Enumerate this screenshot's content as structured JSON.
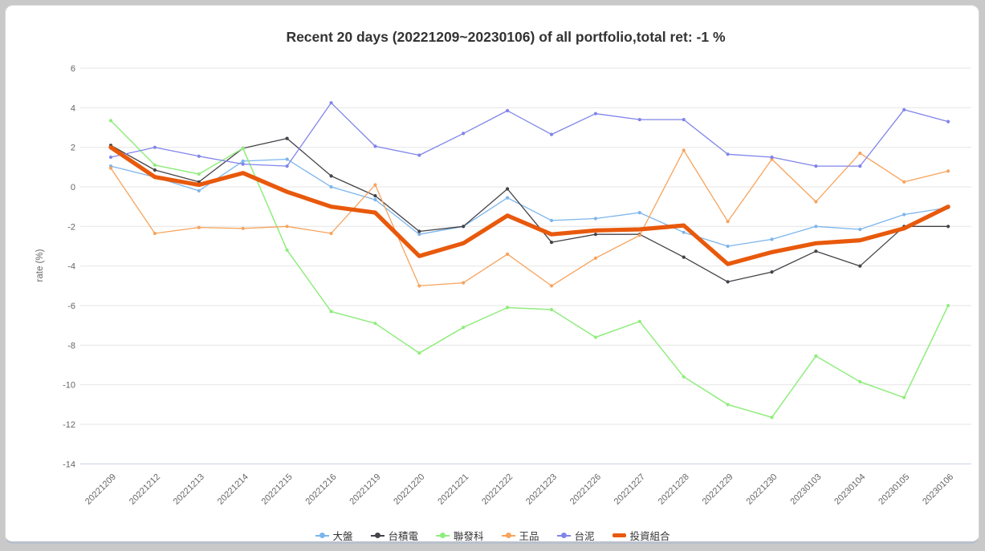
{
  "window": {
    "background": "#c9c9c9",
    "panel_background": "#ffffff",
    "bottom_edge_color": "#b9c0cc"
  },
  "y_axis": {
    "label": "rate (%)",
    "ticks": [
      6,
      4,
      2,
      0,
      -2,
      -4,
      -6,
      -8,
      -10,
      -12,
      -14
    ],
    "tick_color": "#666666",
    "grid_color": "#e6e6e6",
    "axis_line_color": "#ccd6eb"
  },
  "chart_data": {
    "type": "line",
    "title": "Recent 20 days (20221209~20230106) of all portfolio,total ret: -1 %",
    "title_color": "#333333",
    "xlabel": "",
    "ylabel": "rate (%)",
    "ylim": [
      -14,
      6
    ],
    "grid": true,
    "legend_position": "bottom",
    "x": [
      "20221209",
      "20221212",
      "20221213",
      "20221214",
      "20221215",
      "20221216",
      "20221219",
      "20221220",
      "20221221",
      "20221222",
      "20221223",
      "20221226",
      "20221227",
      "20221228",
      "20221229",
      "20221230",
      "20230103",
      "20230104",
      "20230105",
      "20230106"
    ],
    "series": [
      {
        "name": "大盤",
        "color": "#7cb5ec",
        "width": 1.3,
        "marker": true,
        "values": [
          1.05,
          0.5,
          -0.2,
          1.3,
          1.4,
          0.0,
          -0.65,
          -2.4,
          -2.0,
          -0.55,
          -1.7,
          -1.6,
          -1.3,
          -2.3,
          -3.0,
          -2.65,
          -2.0,
          -2.15,
          -1.4,
          -1.05
        ]
      },
      {
        "name": "台積電",
        "color": "#434348",
        "width": 1.3,
        "marker": true,
        "values": [
          2.1,
          0.85,
          0.25,
          1.95,
          2.45,
          0.55,
          -0.45,
          -2.25,
          -2.0,
          -0.1,
          -2.8,
          -2.4,
          -2.4,
          -3.55,
          -4.8,
          -4.3,
          -3.25,
          -4.0,
          -2.0,
          -2.0
        ]
      },
      {
        "name": "聯發科",
        "color": "#90ed7d",
        "width": 1.5,
        "marker": true,
        "values": [
          3.35,
          1.1,
          0.65,
          1.95,
          -3.2,
          -6.3,
          -6.9,
          -8.4,
          -7.1,
          -6.1,
          -6.2,
          -7.6,
          -6.8,
          -9.6,
          -11.0,
          -11.65,
          -8.55,
          -9.85,
          -10.65,
          -6.0
        ]
      },
      {
        "name": "王品",
        "color": "#f7a35c",
        "width": 1.3,
        "marker": true,
        "values": [
          0.95,
          -2.35,
          -2.05,
          -2.1,
          -2.0,
          -2.35,
          0.1,
          -5.0,
          -4.85,
          -3.4,
          -5.0,
          -3.6,
          -2.45,
          1.85,
          -1.75,
          1.4,
          -0.75,
          1.7,
          0.25,
          0.8
        ]
      },
      {
        "name": "台泥",
        "color": "#8085e9",
        "width": 1.3,
        "marker": true,
        "values": [
          1.5,
          2.0,
          1.55,
          1.15,
          1.05,
          4.25,
          2.05,
          1.6,
          2.7,
          3.85,
          2.65,
          3.7,
          3.4,
          3.4,
          1.65,
          1.5,
          1.05,
          1.05,
          3.9,
          3.3
        ]
      },
      {
        "name": "投資組合",
        "color": "#e8590c",
        "width": 5.2,
        "marker": false,
        "values": [
          2.0,
          0.5,
          0.1,
          0.7,
          -0.25,
          -1.0,
          -1.3,
          -3.5,
          -2.85,
          -1.45,
          -2.4,
          -2.2,
          -2.15,
          -1.95,
          -3.9,
          -3.3,
          -2.85,
          -2.7,
          -2.1,
          -1.0
        ]
      }
    ]
  }
}
